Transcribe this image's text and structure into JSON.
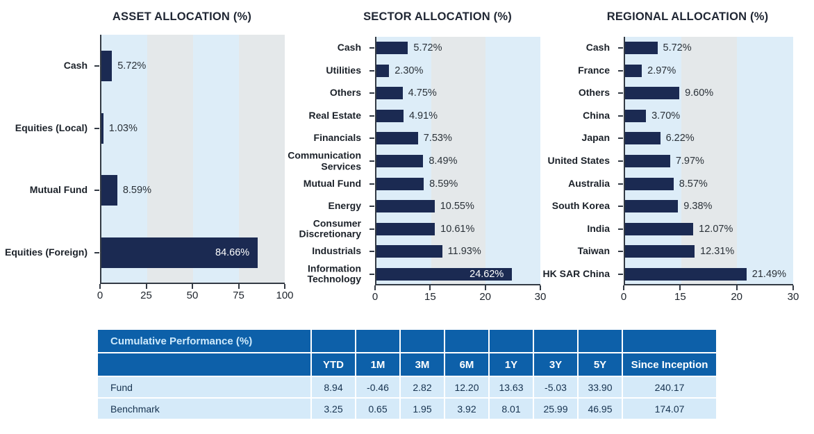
{
  "colors": {
    "bar_navy": "#1b2a52",
    "band_light_blue": "#ddedf8",
    "band_light_gray": "#e4e8ea",
    "axis_line": "#333a44",
    "chart_title_text": "#1f2633",
    "category_label_text": "#1b2129",
    "value_label_text": "#2a3138",
    "value_label_inside_text": "#ffffff",
    "table_header_blue": "#0d60a9",
    "table_body_blue": "#d5eaf9",
    "table_header_title_text": "#cde9fb",
    "table_header_text": "#ffffff",
    "table_body_text": "#16324f"
  },
  "chart_data": [
    {
      "type": "bar",
      "orientation": "horizontal",
      "title": "ASSET ALLOCATION (%)",
      "categories": [
        "Cash",
        "Equities (Local)",
        "Mutual Fund",
        "Equities (Foreign)"
      ],
      "values": [
        5.72,
        1.03,
        8.59,
        84.66
      ],
      "value_labels": [
        "5.72%",
        "1.03%",
        "8.59%",
        "84.66%"
      ],
      "xlim": [
        0,
        100
      ],
      "xtick_labels": [
        "0",
        "25",
        "50",
        "75",
        "100"
      ],
      "grid": false,
      "legend": false,
      "background_bands": "alternating light-blue / light-gray per tick interval"
    },
    {
      "type": "bar",
      "orientation": "horizontal",
      "title": "SECTOR ALLOCATION (%)",
      "categories": [
        "Cash",
        "Utilities",
        "Others",
        "Real Estate",
        "Financials",
        "Communication Services",
        "Mutual Fund",
        "Energy",
        "Consumer Discretionary",
        "Industrials",
        "Information Technology"
      ],
      "values": [
        5.72,
        2.3,
        4.75,
        4.91,
        7.53,
        8.49,
        8.59,
        10.55,
        10.61,
        11.93,
        24.62
      ],
      "value_labels": [
        "5.72%",
        "2.30%",
        "4.75%",
        "4.91%",
        "7.53%",
        "8.49%",
        "8.59%",
        "10.55%",
        "10.61%",
        "11.93%",
        "24.62%"
      ],
      "xlim": [
        0,
        30
      ],
      "xtick_labels": [
        "0",
        "15",
        "20",
        "30"
      ],
      "grid": false,
      "legend": false,
      "background_bands": "alternating light-blue / light-gray per tick interval"
    },
    {
      "type": "bar",
      "orientation": "horizontal",
      "title": "REGIONAL ALLOCATION (%)",
      "categories": [
        "Cash",
        "France",
        "Others",
        "China",
        "Japan",
        "United States",
        "Australia",
        "South Korea",
        "India",
        "Taiwan",
        "HK SAR China"
      ],
      "values": [
        5.72,
        2.97,
        9.6,
        3.7,
        6.22,
        7.97,
        8.57,
        9.38,
        12.07,
        12.31,
        21.49
      ],
      "value_labels": [
        "5.72%",
        "2.97%",
        "9.60%",
        "3.70%",
        "6.22%",
        "7.97%",
        "8.57%",
        "9.38%",
        "12.07%",
        "12.31%",
        "21.49%"
      ],
      "xlim": [
        0,
        30
      ],
      "xtick_labels": [
        "0",
        "15",
        "20",
        "30"
      ],
      "grid": false,
      "legend": false,
      "background_bands": "alternating light-blue / light-gray per tick interval"
    }
  ],
  "table": {
    "title": "Cumulative Performance (%)",
    "columns": [
      "YTD",
      "1M",
      "3M",
      "6M",
      "1Y",
      "3Y",
      "5Y",
      "Since Inception"
    ],
    "rows": [
      {
        "name": "Fund",
        "values": [
          "8.94",
          "-0.46",
          "2.82",
          "12.20",
          "13.63",
          "-5.03",
          "33.90",
          "240.17"
        ]
      },
      {
        "name": "Benchmark",
        "values": [
          "3.25",
          "0.65",
          "1.95",
          "3.92",
          "8.01",
          "25.99",
          "46.95",
          "174.07"
        ]
      }
    ]
  }
}
